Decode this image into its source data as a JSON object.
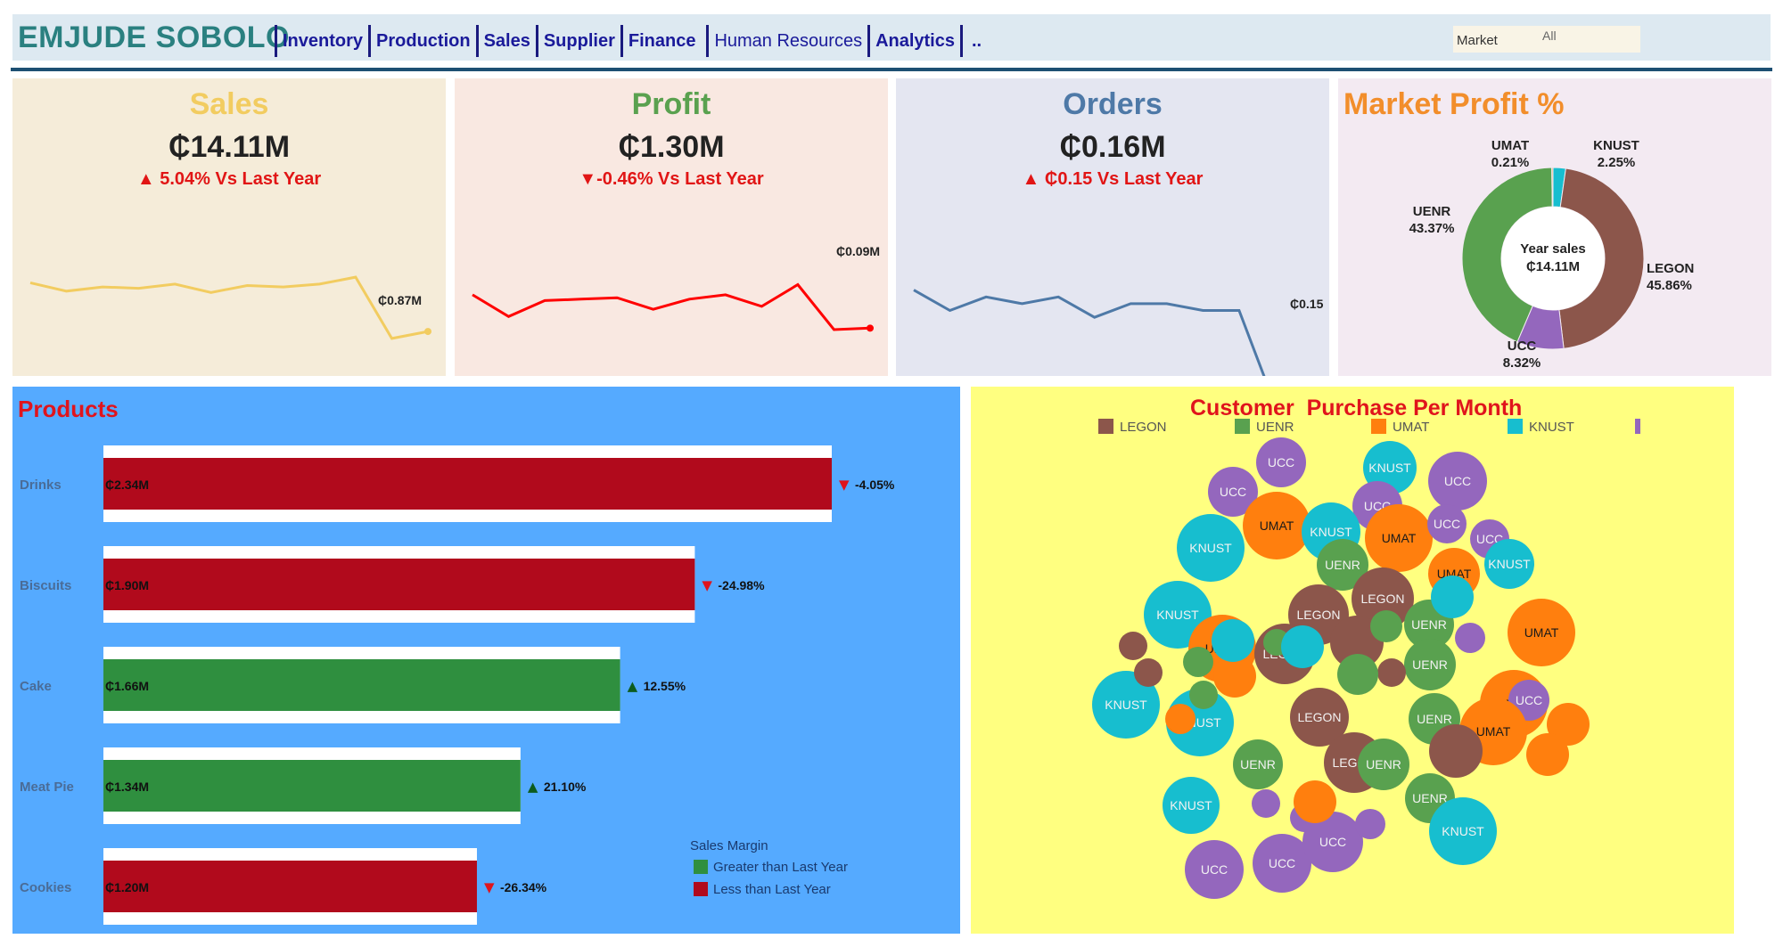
{
  "header": {
    "brand": "EMJUDE SOBOLO",
    "nav": [
      "Inventory",
      "Production",
      "Sales",
      "Supplier",
      "Finance",
      "Human Resources",
      "Analytics",
      ".."
    ],
    "market_filter": {
      "label": "Market",
      "value": "All"
    }
  },
  "kpis": [
    {
      "title": "Sales",
      "value": "₵14.11M",
      "delta": "▲ 5.04% Vs Last Year",
      "end_label": "₵0.87M"
    },
    {
      "title": "Profit",
      "value": "₵1.30M",
      "delta": "▼-0.46% Vs Last Year",
      "end_label": "₵0.09M"
    },
    {
      "title": "Orders",
      "value": "₵0.16M",
      "delta": "▲ ₵0.15 Vs Last Year",
      "end_label": "₵0.15"
    }
  ],
  "colors": {
    "sales": "#f2cc60",
    "profit": "#ff0000",
    "orders": "#4e79a7",
    "legon": "#8c564b",
    "uenr": "#59a14f",
    "umat": "#ff7f0e",
    "knust": "#17becf",
    "ucc": "#9467bd",
    "greater": "#2f8f3f",
    "less": "#b10a1c"
  },
  "chart_data": [
    {
      "type": "line",
      "title": "Sales",
      "series": [
        {
          "values": [
            1.22,
            1.16,
            1.19,
            1.18,
            1.21,
            1.15,
            1.2,
            1.19,
            1.21,
            1.26,
            0.82,
            0.87
          ]
        }
      ],
      "end_label": "₵0.87M"
    },
    {
      "type": "line",
      "title": "Profit",
      "series": [
        {
          "values": [
            0.112,
            0.097,
            0.108,
            0.109,
            0.11,
            0.102,
            0.109,
            0.112,
            0.104,
            0.119,
            0.088,
            0.089
          ]
        }
      ],
      "end_label": "₵0.09M"
    },
    {
      "type": "line",
      "title": "Orders",
      "series": [
        {
          "values": [
            0.167,
            0.164,
            0.166,
            0.165,
            0.166,
            0.163,
            0.165,
            0.165,
            0.164,
            0.164,
            0.15,
            0.15
          ]
        }
      ],
      "end_label": "₵0.15"
    },
    {
      "type": "pie",
      "title": "Market Profit %",
      "center_label": [
        "Year sales",
        "₵14.11M"
      ],
      "slices": [
        {
          "name": "KNUST",
          "value": 2.25,
          "label": "2.25%"
        },
        {
          "name": "LEGON",
          "value": 45.86,
          "label": "45.86%"
        },
        {
          "name": "UCC",
          "value": 8.32,
          "label": "8.32%"
        },
        {
          "name": "UENR",
          "value": 43.37,
          "label": "43.37%"
        },
        {
          "name": "UMAT",
          "value": 0.21,
          "label": "0.21%"
        }
      ]
    },
    {
      "type": "bar",
      "title": "Products",
      "categories": [
        "Drinks",
        "Biscuits",
        "Cake",
        "Meat Pie",
        "Cookies"
      ],
      "values": [
        2.34,
        1.9,
        1.66,
        1.34,
        1.2
      ],
      "value_labels": [
        "₵2.34M",
        "₵1.90M",
        "₵1.66M",
        "₵1.34M",
        "₵1.20M"
      ],
      "change": [
        "▼ -4.05%",
        "▼ -24.98%",
        "▲ 12.55%",
        "▲ 21.10%",
        "▼ -26.34%"
      ],
      "margin": [
        "less",
        "less",
        "greater",
        "greater",
        "less"
      ],
      "legend": {
        "title": "Sales Margin",
        "items": [
          "Greater than Last Year",
          "Less than Last Year"
        ]
      }
    },
    {
      "type": "scatter",
      "title": "Customer  Purchase Per Month",
      "legend": [
        "LEGON",
        "UENR",
        "UMAT",
        "KNUST",
        ""
      ],
      "bubbles": [
        {
          "m": "UCC",
          "s": 28,
          "show": true
        },
        {
          "m": "UCC",
          "s": 28,
          "show": true
        },
        {
          "m": "KNUST",
          "s": 30,
          "show": true
        },
        {
          "m": "UCC",
          "s": 33,
          "show": true
        },
        {
          "m": "UCC",
          "s": 28,
          "show": true
        },
        {
          "m": "UMAT",
          "s": 38,
          "show": true
        },
        {
          "m": "KNUST",
          "s": 33,
          "show": true
        },
        {
          "m": "UMAT",
          "s": 38,
          "show": true
        },
        {
          "m": "UCC",
          "s": 22,
          "show": true
        },
        {
          "m": "UCC",
          "s": 22,
          "show": true
        },
        {
          "m": "KNUST",
          "s": 38,
          "show": true
        },
        {
          "m": "UENR",
          "s": 29,
          "show": true
        },
        {
          "m": "UMAT",
          "s": 29,
          "show": true
        },
        {
          "m": "KNUST",
          "s": 28,
          "show": true
        },
        {
          "m": "KNUST",
          "s": 38,
          "show": true
        },
        {
          "m": "LEGON",
          "s": 34,
          "show": true
        },
        {
          "m": "LEGON",
          "s": 35,
          "show": true
        },
        {
          "m": "UENR",
          "s": 28,
          "show": true
        },
        {
          "m": "UMAT",
          "s": 38,
          "show": true
        },
        {
          "m": "UMAT",
          "s": 38,
          "show": true
        },
        {
          "m": "LEGON",
          "s": 34,
          "show": true
        },
        {
          "m": "UENR",
          "s": 29,
          "show": true
        },
        {
          "m": "KNUST",
          "s": 38,
          "show": true
        },
        {
          "m": "UMAT",
          "s": 38,
          "show": true
        },
        {
          "m": "LEGON",
          "s": 33,
          "show": true
        },
        {
          "m": "UENR",
          "s": 29,
          "show": true
        },
        {
          "m": "UCC",
          "s": 23,
          "show": true
        },
        {
          "m": "KNUST",
          "s": 38,
          "show": true
        },
        {
          "m": "UENR",
          "s": 28,
          "show": true
        },
        {
          "m": "LEGON",
          "s": 34,
          "show": true
        },
        {
          "m": "UENR",
          "s": 29,
          "show": true
        },
        {
          "m": "UMAT",
          "s": 38,
          "show": true
        },
        {
          "m": "UENR",
          "s": 28,
          "show": true
        },
        {
          "m": "KNUST",
          "s": 38,
          "show": true
        },
        {
          "m": "KNUST",
          "s": 32,
          "show": true
        },
        {
          "m": "UCC",
          "s": 33,
          "show": true
        },
        {
          "m": "UCC",
          "s": 33,
          "show": true
        },
        {
          "m": "UCC",
          "s": 34,
          "show": true
        },
        {
          "m": "UCC",
          "s": 17,
          "show": false
        },
        {
          "m": "KNUST",
          "s": 24,
          "show": false
        },
        {
          "m": "UENR",
          "s": 17,
          "show": false
        },
        {
          "m": "UMAT",
          "s": 17,
          "show": false
        },
        {
          "m": "UENR",
          "s": 16,
          "show": false
        },
        {
          "m": "UMAT",
          "s": 24,
          "show": false
        },
        {
          "m": "UENR",
          "s": 15,
          "show": false
        },
        {
          "m": "KNUST",
          "s": 24,
          "show": false
        },
        {
          "m": "KNUST",
          "s": 24,
          "show": false
        },
        {
          "m": "LEGON",
          "s": 16,
          "show": false
        },
        {
          "m": "LEGON",
          "s": 16,
          "show": false
        },
        {
          "m": "LEGON",
          "s": 30,
          "show": false
        },
        {
          "m": "LEGON",
          "s": 16,
          "show": false
        },
        {
          "m": "UENR",
          "s": 18,
          "show": false
        },
        {
          "m": "UENR",
          "s": 23,
          "show": false
        },
        {
          "m": "LEGON",
          "s": 30,
          "show": false
        },
        {
          "m": "UCC",
          "s": 16,
          "show": false
        },
        {
          "m": "UCC",
          "s": 16,
          "show": false
        },
        {
          "m": "UMAT",
          "s": 24,
          "show": false
        },
        {
          "m": "UMAT",
          "s": 24,
          "show": false
        },
        {
          "m": "UCC",
          "s": 17,
          "show": false
        },
        {
          "m": "UMAT",
          "s": 24,
          "show": false
        }
      ]
    }
  ]
}
